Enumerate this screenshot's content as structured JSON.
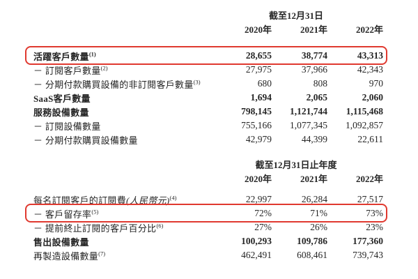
{
  "page": {
    "background_color": "#ffffff",
    "text_color": "#262626",
    "highlight_color": "#e0392f"
  },
  "table1": {
    "period_header": "截至12月31日",
    "years": [
      "2020年",
      "2021年",
      "2022年"
    ],
    "rows": [
      {
        "label": "活躍客戶數量",
        "note": "(1)",
        "bold": true,
        "highlighted": true,
        "values": [
          "28,655",
          "38,774",
          "43,313"
        ]
      },
      {
        "label": "－ 訂閱客戶數量",
        "note": "(2)",
        "bold": false,
        "highlighted": false,
        "values": [
          "27,975",
          "37,966",
          "42,343"
        ]
      },
      {
        "label": "－ 分期付款購買設備的非訂閱客戶數量",
        "note": "(3)",
        "bold": false,
        "highlighted": false,
        "values": [
          "680",
          "808",
          "970"
        ]
      },
      {
        "label": "SaaS客戶數量",
        "note": "",
        "bold": true,
        "highlighted": false,
        "values": [
          "1,694",
          "2,065",
          "2,060"
        ]
      },
      {
        "label": "服務設備數量",
        "note": "",
        "bold": true,
        "highlighted": false,
        "values": [
          "798,145",
          "1,121,744",
          "1,115,468"
        ]
      },
      {
        "label": "－ 訂閱設備數量",
        "note": "",
        "bold": false,
        "highlighted": false,
        "values": [
          "755,166",
          "1,077,345",
          "1,092,857"
        ]
      },
      {
        "label": "－ 分期付款購買設備數量",
        "note": "",
        "bold": false,
        "highlighted": false,
        "values": [
          "42,979",
          "44,399",
          "22,611"
        ]
      }
    ]
  },
  "table2": {
    "period_header": "截至12月31日止年度",
    "years": [
      "2020年",
      "2021年",
      "2022年"
    ],
    "rows": [
      {
        "label": "每名訂閱客戶的訂閱費",
        "label_italic": "(人民幣元)",
        "note": "(4)",
        "bold": false,
        "highlighted": false,
        "values": [
          "22,997",
          "26,284",
          "27,517"
        ]
      },
      {
        "label": "－ 客戶留存率",
        "note": "(5)",
        "bold": false,
        "highlighted": true,
        "values": [
          "72%",
          "71%",
          "73%"
        ]
      },
      {
        "label": "－ 提前終止訂閱的客戶百分比",
        "note": "(6)",
        "bold": false,
        "highlighted": false,
        "values": [
          "27%",
          "26%",
          "23%"
        ]
      },
      {
        "label": "售出設備數量",
        "note": "",
        "bold": true,
        "highlighted": false,
        "values": [
          "100,293",
          "109,786",
          "177,360"
        ]
      },
      {
        "label": "再製造設備數量",
        "note": "(7)",
        "bold": false,
        "highlighted": false,
        "values": [
          "462,491",
          "608,461",
          "739,743"
        ]
      }
    ]
  }
}
